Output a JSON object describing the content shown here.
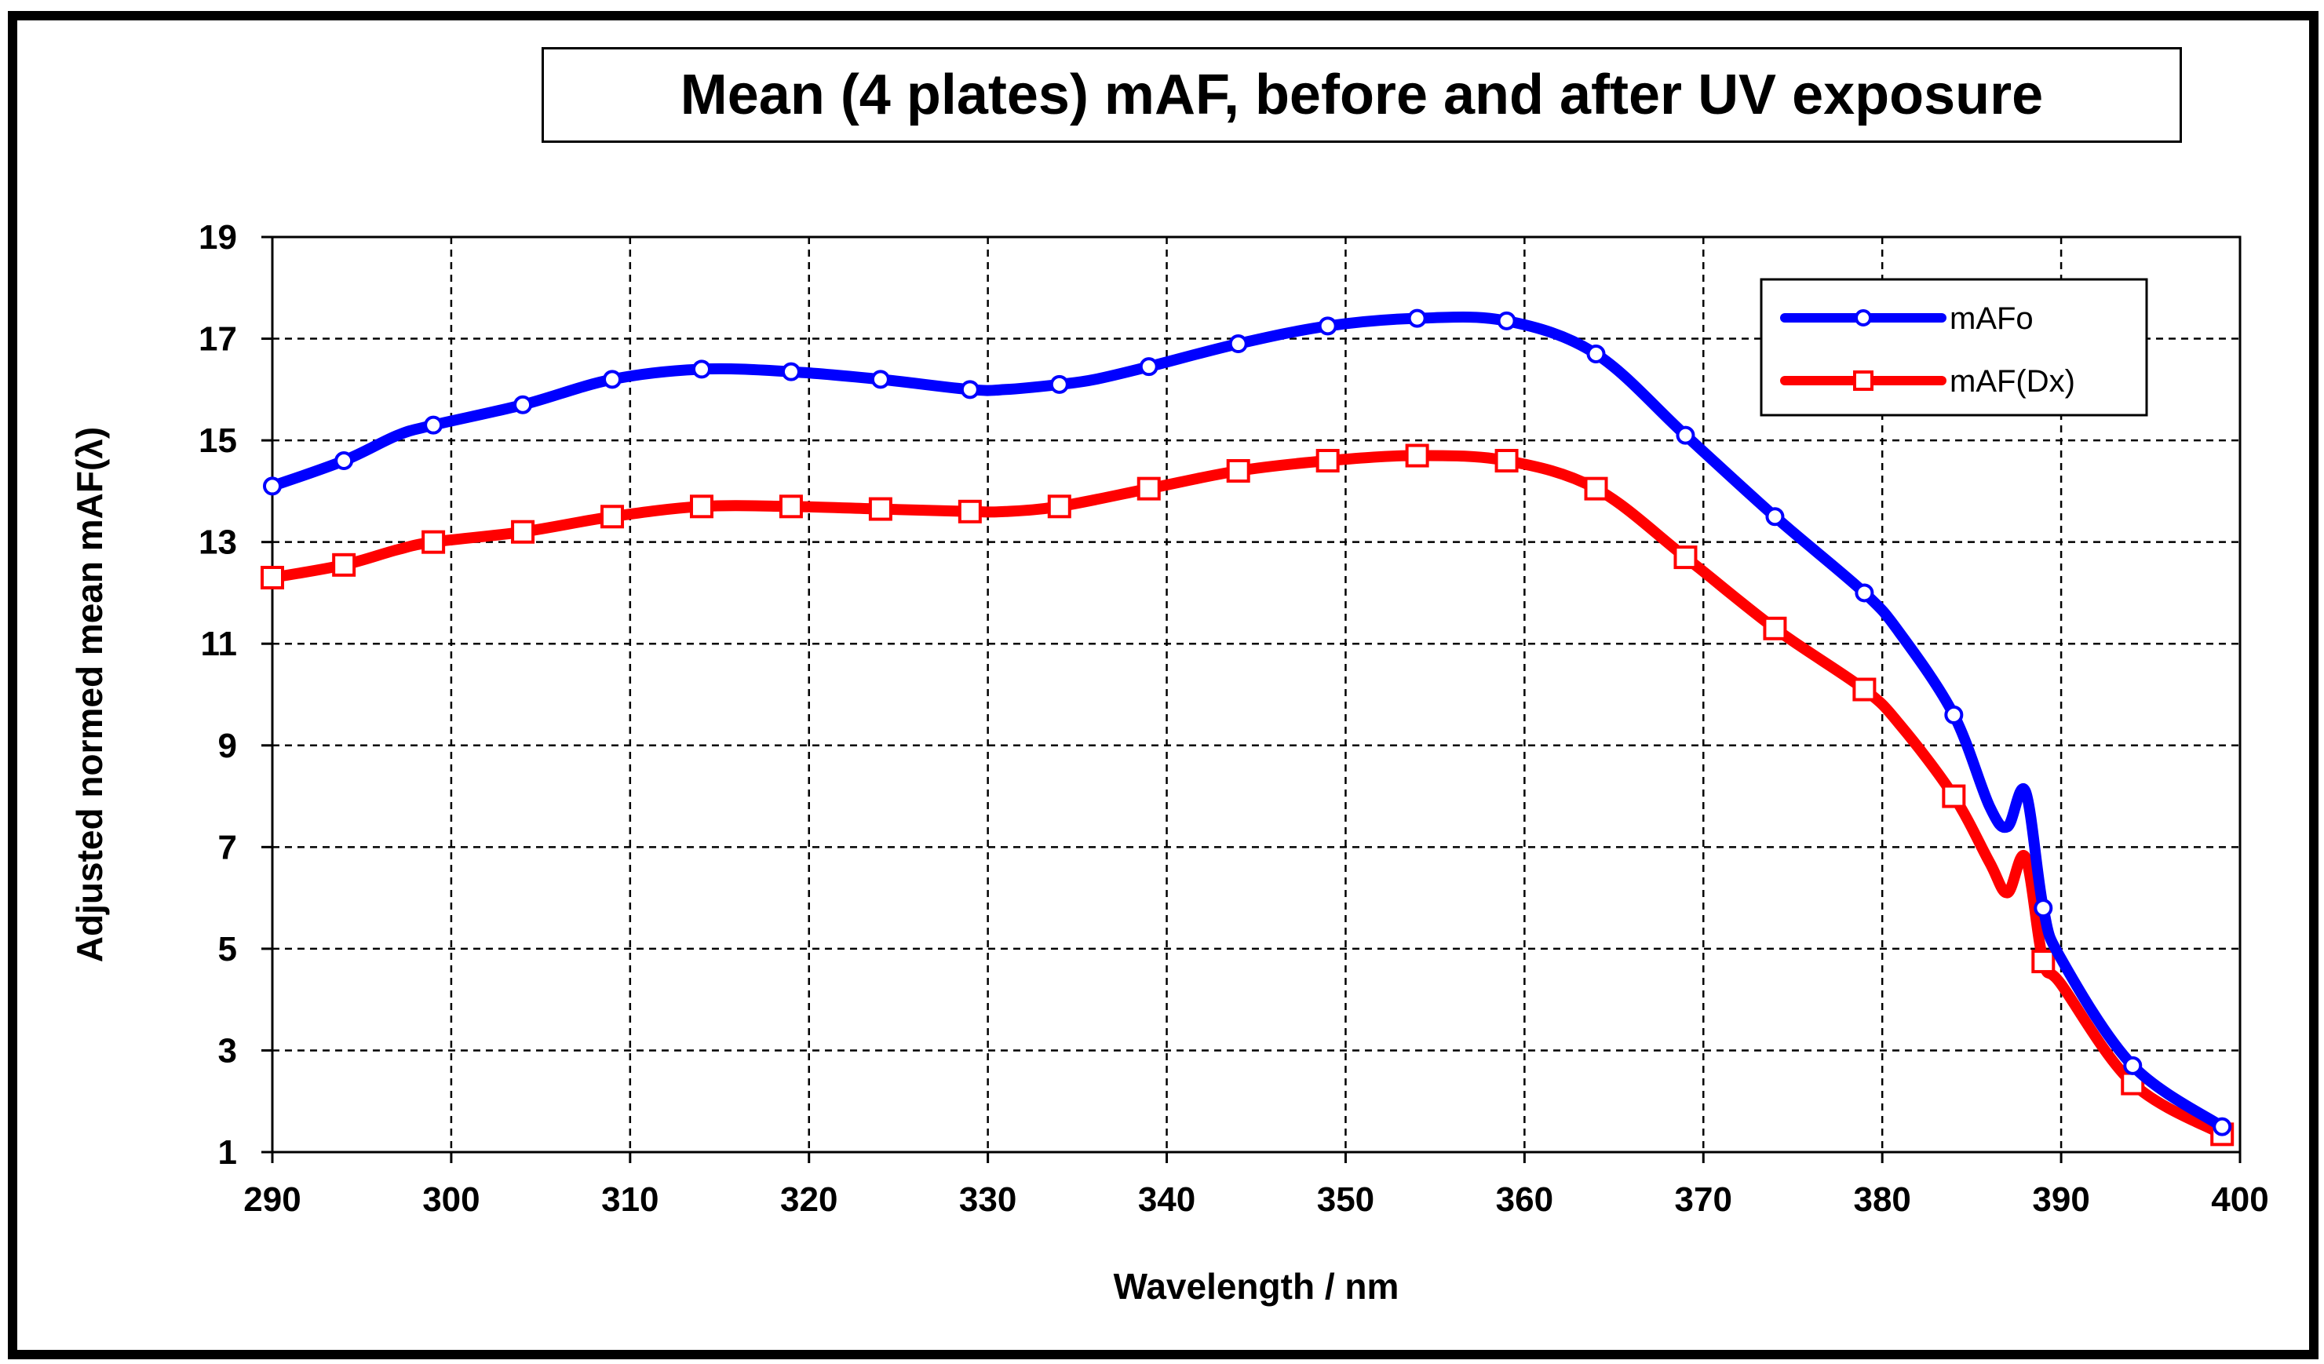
{
  "chart_data": {
    "type": "line",
    "title": "Mean (4 plates) mAF, before and after UV exposure",
    "xlabel": "Wavelength / nm",
    "ylabel": "Adjusted normed mean mAF(λ)",
    "xlim": [
      290,
      400
    ],
    "ylim": [
      1,
      19
    ],
    "xticks": [
      290,
      300,
      310,
      320,
      330,
      340,
      350,
      360,
      370,
      380,
      390,
      400
    ],
    "yticks": [
      1,
      3,
      5,
      7,
      9,
      11,
      13,
      15,
      17,
      19
    ],
    "grid": true,
    "legend_position": "top-right",
    "series": [
      {
        "name": "mAFo",
        "color": "#0000ff",
        "marker": "circle",
        "x": [
          290,
          294,
          297,
          299,
          304,
          309,
          314,
          319,
          324,
          329,
          331,
          334,
          336,
          339,
          344,
          349,
          354,
          359,
          364,
          369,
          374,
          379,
          381,
          384,
          386,
          387,
          388,
          389,
          390,
          394,
          399
        ],
        "y": [
          14.1,
          14.6,
          15.1,
          15.3,
          15.7,
          16.2,
          16.4,
          16.35,
          16.2,
          16.0,
          16.0,
          16.1,
          16.2,
          16.45,
          16.9,
          17.25,
          17.4,
          17.35,
          16.7,
          15.1,
          13.5,
          12.0,
          11.2,
          9.6,
          7.8,
          7.4,
          8.1,
          5.8,
          4.8,
          2.7,
          1.5
        ],
        "marker_x": [
          290,
          294,
          299,
          304,
          309,
          314,
          319,
          324,
          329,
          334,
          339,
          344,
          349,
          354,
          359,
          364,
          369,
          374,
          379,
          384,
          389,
          394,
          399
        ]
      },
      {
        "name": "mAF(Dx)",
        "color": "#ff0000",
        "marker": "square",
        "x": [
          290,
          294,
          297,
          299,
          304,
          309,
          314,
          319,
          324,
          329,
          331,
          334,
          339,
          344,
          349,
          354,
          359,
          364,
          369,
          374,
          379,
          381,
          384,
          386,
          387,
          388,
          389,
          390,
          394,
          399
        ],
        "y": [
          12.3,
          12.55,
          12.85,
          13.0,
          13.2,
          13.5,
          13.7,
          13.7,
          13.65,
          13.6,
          13.6,
          13.7,
          14.05,
          14.4,
          14.6,
          14.7,
          14.6,
          14.05,
          12.7,
          11.3,
          10.1,
          9.4,
          8.0,
          6.7,
          6.1,
          6.8,
          4.75,
          4.3,
          2.35,
          1.35
        ],
        "marker_x": [
          290,
          294,
          299,
          304,
          309,
          314,
          319,
          324,
          329,
          334,
          339,
          344,
          349,
          354,
          359,
          364,
          369,
          374,
          379,
          384,
          389,
          394,
          399
        ]
      }
    ]
  }
}
